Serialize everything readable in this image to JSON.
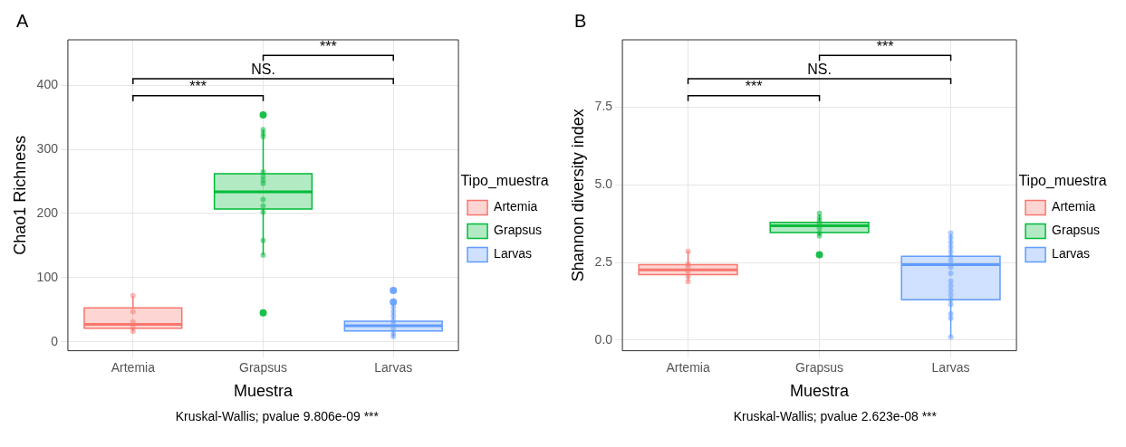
{
  "chart_data": [
    {
      "type": "box",
      "title": "A",
      "xlabel": "Muestra",
      "ylabel": "Chao1 Richness",
      "legend_title": "Tipo_muestra",
      "legend": "right",
      "grid": true,
      "marker": "circle",
      "categories": [
        "Artemia",
        "Grapsus",
        "Larvas"
      ],
      "ylim": [
        -14,
        471
      ],
      "yticks": [
        0,
        100,
        200,
        300,
        400
      ],
      "series": [
        {
          "name": "Artemia",
          "color": "#f8766d",
          "boxes": [
            {
              "low": 16,
              "q1": 21,
              "median": 27,
              "q3": 53,
              "high": 71
            },
            null,
            null
          ]
        },
        {
          "name": "Grapsus",
          "color": "#00ba38",
          "boxes": [
            null,
            {
              "low": 135,
              "q1": 207,
              "median": 234,
              "q3": 262,
              "high": 331,
              "outliers": [
                45,
                354
              ]
            },
            null
          ]
        },
        {
          "name": "Larvas",
          "color": "#619cff",
          "boxes": [
            null,
            null,
            {
              "low": 7,
              "q1": 17,
              "median": 25,
              "q3": 32,
              "high": 58,
              "outliers": [
                62,
                80
              ]
            }
          ]
        },
        {
          "type": "scatter",
          "color": "#f8766d",
          "x": [
            "Artemia",
            "Artemia",
            "Artemia",
            "Artemia",
            "Artemia"
          ],
          "values": [
            72,
            47,
            31,
            22,
            16
          ]
        },
        {
          "type": "scatter",
          "color": "#00ba38",
          "x": [
            "Grapsus",
            "Grapsus",
            "Grapsus",
            "Grapsus",
            "Grapsus",
            "Grapsus",
            "Grapsus",
            "Grapsus",
            "Grapsus",
            "Grapsus",
            "Grapsus",
            "Grapsus"
          ],
          "values": [
            331,
            325,
            320,
            265,
            258,
            252,
            247,
            222,
            212,
            202,
            158,
            135
          ]
        },
        {
          "type": "scatter",
          "color": "#619cff",
          "x": [
            "Larvas",
            "Larvas",
            "Larvas",
            "Larvas",
            "Larvas",
            "Larvas",
            "Larvas",
            "Larvas"
          ],
          "values": [
            54,
            47,
            40,
            33,
            27,
            20,
            13,
            8
          ]
        }
      ],
      "annotations": [
        "***",
        "NS.",
        "***",
        "Kruskal-Wallis; pvalue 9.806e-09 ***"
      ]
    },
    {
      "type": "box",
      "title": "B",
      "xlabel": "Muestra",
      "ylabel": "Shannon diversity index",
      "legend_title": "Tipo_muestra",
      "legend": "right",
      "grid": true,
      "marker": "circle",
      "categories": [
        "Artemia",
        "Grapsus",
        "Larvas"
      ],
      "ylim": [
        -0.34,
        9.66
      ],
      "yticks": [
        {
          "value": 0,
          "label": "0.0"
        },
        2.5,
        {
          "value": 5,
          "label": "5.0"
        },
        7.5
      ],
      "series": [
        {
          "name": "Artemia",
          "color": "#f8766d",
          "boxes": [
            {
              "low": 1.89,
              "q1": 2.11,
              "median": 2.26,
              "q3": 2.43,
              "high": 2.86
            },
            null,
            null
          ]
        },
        {
          "name": "Grapsus",
          "color": "#00ba38",
          "boxes": [
            null,
            {
              "low": 3.35,
              "q1": 3.46,
              "median": 3.68,
              "q3": 3.79,
              "high": 4.04,
              "outliers": [
                2.75
              ]
            },
            null
          ]
        },
        {
          "name": "Larvas",
          "color": "#619cff",
          "boxes": [
            null,
            null,
            {
              "low": 0.09,
              "q1": 1.3,
              "median": 2.43,
              "q3": 2.7,
              "high": 3.41
            }
          ]
        },
        {
          "type": "scatter",
          "color": "#f8766d",
          "x": [
            "Artemia",
            "Artemia",
            "Artemia",
            "Artemia",
            "Artemia",
            "Artemia"
          ],
          "values": [
            2.86,
            2.45,
            2.35,
            2.2,
            2.05,
            1.88
          ]
        },
        {
          "type": "scatter",
          "color": "#00ba38",
          "x": [
            "Grapsus",
            "Grapsus",
            "Grapsus",
            "Grapsus",
            "Grapsus",
            "Grapsus",
            "Grapsus"
          ],
          "values": [
            4.08,
            3.95,
            3.85,
            3.75,
            3.6,
            3.45,
            3.35
          ]
        },
        {
          "type": "scatter",
          "color": "#619cff",
          "x": [
            "Larvas",
            "Larvas",
            "Larvas",
            "Larvas",
            "Larvas",
            "Larvas",
            "Larvas",
            "Larvas",
            "Larvas",
            "Larvas",
            "Larvas",
            "Larvas",
            "Larvas",
            "Larvas",
            "Larvas",
            "Larvas",
            "Larvas",
            "Larvas"
          ],
          "values": [
            3.45,
            3.3,
            3.15,
            3.0,
            2.85,
            2.7,
            2.55,
            2.35,
            2.15,
            1.9,
            1.75,
            1.6,
            1.45,
            1.3,
            1.15,
            0.85,
            0.7,
            0.1
          ]
        }
      ],
      "annotations": [
        "***",
        "NS.",
        "***",
        "Kruskal-Wallis; pvalue 2.623e-08 ***"
      ]
    }
  ]
}
